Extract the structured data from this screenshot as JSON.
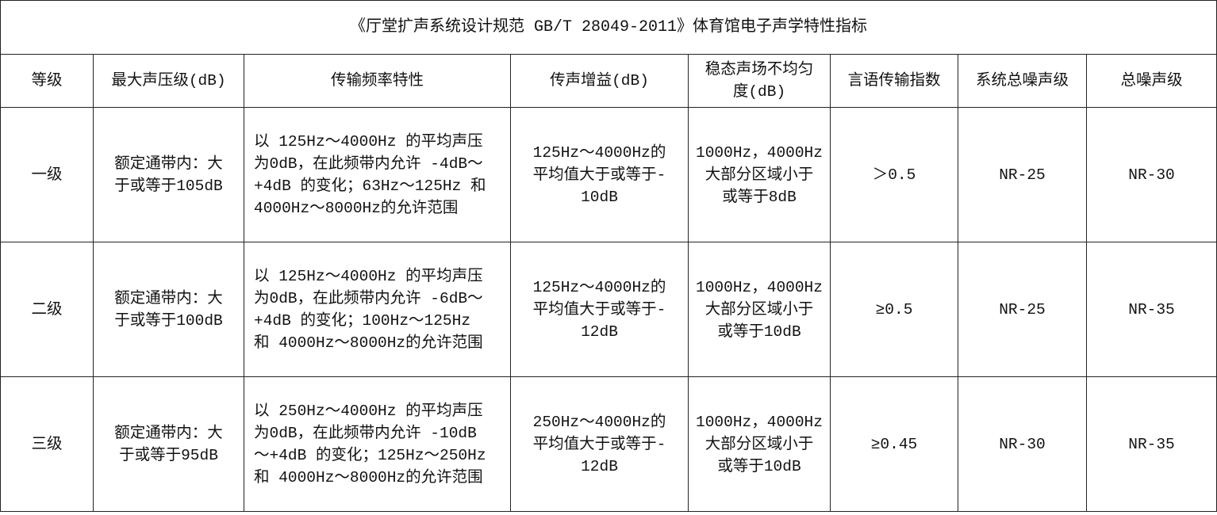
{
  "title": "《厅堂扩声系统设计规范 GB/T 28049-2011》体育馆电子声学特性指标",
  "headers": [
    "等级",
    "最大声压级(dB)",
    "传输频率特性",
    "传声增益(dB)",
    "稳态声场不均匀\n度(dB)",
    "言语传输指数",
    "系统总噪声级",
    "总噪声级"
  ],
  "rows": [
    [
      "一级",
      "额定通带内：大\n于或等于105dB",
      "以 125Hz～4000Hz 的平均声压\n为0dB，在此频带内允许 -4dB～\n+4dB 的变化；63Hz～125Hz 和\n4000Hz～8000Hz的允许范围",
      "125Hz～4000Hz的\n平均值大于或等于-\n10dB",
      "1000Hz，4000Hz\n大部分区域小于\n或等于8dB",
      "＞0.5",
      "NR-25",
      "NR-30"
    ],
    [
      "二级",
      "额定通带内：大\n于或等于100dB",
      "以 125Hz～4000Hz 的平均声压\n为0dB，在此频带内允许 -6dB～\n+4dB 的变化；100Hz～125Hz\n和 4000Hz～8000Hz的允许范围",
      "125Hz～4000Hz的\n平均值大于或等于-\n12dB",
      "1000Hz，4000Hz\n大部分区域小于\n或等于10dB",
      "≥0.5",
      "NR-25",
      "NR-35"
    ],
    [
      "三级",
      "额定通带内：大\n于或等于95dB",
      "以 250Hz～4000Hz 的平均声压\n为0dB，在此频带内允许 -10dB\n～+4dB 的变化；125Hz～250Hz\n和 4000Hz～8000Hz的允许范围",
      "250Hz～4000Hz的\n平均值大于或等于-\n12dB",
      "1000Hz，4000Hz\n大部分区域小于\n或等于10dB",
      "≥0.45",
      "NR-30",
      "NR-35"
    ]
  ]
}
